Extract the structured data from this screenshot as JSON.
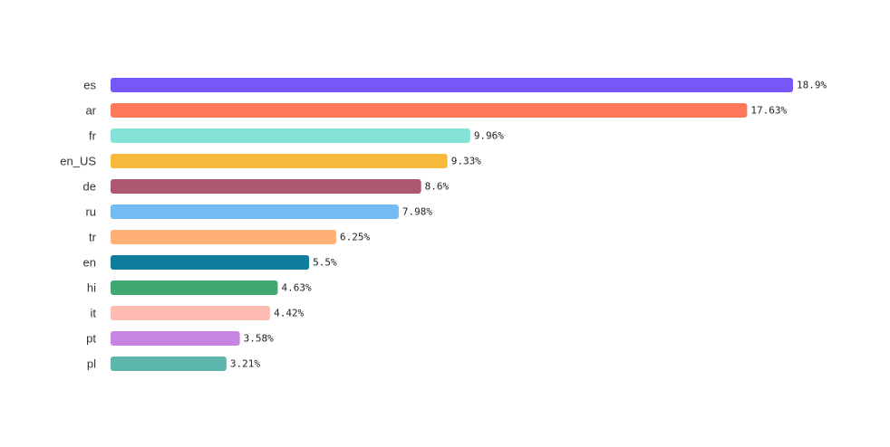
{
  "chart_data": {
    "type": "bar",
    "orientation": "horizontal",
    "title": "",
    "xlabel": "",
    "ylabel": "",
    "grid": false,
    "legend": "none",
    "xlim": [
      0,
      18.9
    ],
    "categories": [
      "es",
      "ar",
      "fr",
      "en_US",
      "de",
      "ru",
      "tr",
      "en",
      "hi",
      "it",
      "pt",
      "pl"
    ],
    "values": [
      18.9,
      17.63,
      9.96,
      9.33,
      8.6,
      7.98,
      6.25,
      5.5,
      4.63,
      4.42,
      3.58,
      3.21
    ],
    "value_labels": [
      "18.9%",
      "17.63%",
      "9.96%",
      "9.33%",
      "8.6%",
      "7.98%",
      "6.25%",
      "5.5%",
      "4.63%",
      "4.42%",
      "3.58%",
      "3.21%"
    ],
    "colors": [
      "#7857fa",
      "#ff7859",
      "#84e2d9",
      "#f6b93b",
      "#ae5870",
      "#72bcf3",
      "#ffb077",
      "#117d9c",
      "#40a871",
      "#ffbcb4",
      "#c785e2",
      "#5db6ab"
    ]
  }
}
